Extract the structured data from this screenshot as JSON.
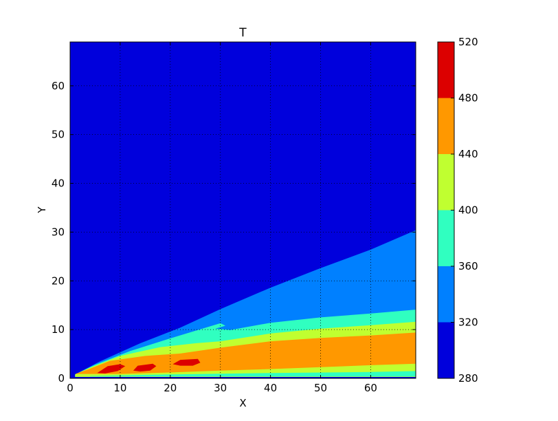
{
  "chart_data": {
    "type": "contourf",
    "title": "T",
    "xlabel": "X",
    "ylabel": "Y",
    "xlim": [
      0,
      69
    ],
    "ylim": [
      0,
      69
    ],
    "xticks": [
      0,
      10,
      20,
      30,
      40,
      50,
      60
    ],
    "yticks": [
      0,
      10,
      20,
      30,
      40,
      50,
      60
    ],
    "grid": true,
    "colorbar": {
      "levels": [
        280,
        320,
        360,
        400,
        440,
        480,
        520
      ],
      "colors": [
        "#0000dc",
        "#0080ff",
        "#30ffc0",
        "#c0ff30",
        "#ff9800",
        "#dc0000"
      ]
    },
    "regions": [
      {
        "level_index": 1,
        "points": [
          [
            1,
            0.8
          ],
          [
            6,
            3.5
          ],
          [
            14,
            7.2
          ],
          [
            22,
            10.4
          ],
          [
            30,
            14.2
          ],
          [
            40,
            18.6
          ],
          [
            50,
            22.6
          ],
          [
            60,
            26.4
          ],
          [
            69,
            30.4
          ],
          [
            69,
            0.3
          ],
          [
            1,
            0.3
          ]
        ]
      },
      {
        "level_index": 2,
        "points": [
          [
            1,
            0.8
          ],
          [
            5,
            2.8
          ],
          [
            12,
            5.6
          ],
          [
            20,
            8.2
          ],
          [
            30,
            11.3
          ],
          [
            31,
            10.8
          ],
          [
            29,
            10.2
          ],
          [
            32,
            9.9
          ],
          [
            40,
            11.4
          ],
          [
            50,
            12.5
          ],
          [
            60,
            13.3
          ],
          [
            69,
            14.1
          ],
          [
            69,
            0.3
          ],
          [
            1,
            0.3
          ]
        ]
      },
      {
        "level_index": 3,
        "points": [
          [
            1,
            0.8
          ],
          [
            4,
            2.2
          ],
          [
            10,
            4.6
          ],
          [
            18,
            6.4
          ],
          [
            25,
            7.2
          ],
          [
            30,
            7.6
          ],
          [
            40,
            9.2
          ],
          [
            50,
            10.2
          ],
          [
            60,
            10.9
          ],
          [
            69,
            11.6
          ],
          [
            69,
            0.3
          ],
          [
            1,
            0.3
          ]
        ]
      },
      {
        "level_index": 4,
        "points": [
          [
            1,
            0.9
          ],
          [
            3.5,
            1.8
          ],
          [
            8,
            3.6
          ],
          [
            15,
            4.6
          ],
          [
            22,
            5.1
          ],
          [
            30,
            6.3
          ],
          [
            40,
            7.6
          ],
          [
            50,
            8.3
          ],
          [
            60,
            8.8
          ],
          [
            69,
            9.4
          ],
          [
            69,
            3.0
          ],
          [
            60,
            2.7
          ],
          [
            50,
            2.3
          ],
          [
            40,
            1.9
          ],
          [
            30,
            1.6
          ],
          [
            20,
            1.2
          ],
          [
            10,
            0.9
          ],
          [
            4,
            0.9
          ]
        ]
      },
      {
        "level_index": 2,
        "points": [
          [
            4,
            0.5
          ],
          [
            20,
            0.8
          ],
          [
            40,
            1.1
          ],
          [
            60,
            1.3
          ],
          [
            69,
            1.5
          ],
          [
            69,
            0.4
          ],
          [
            4,
            0.4
          ]
        ]
      },
      {
        "level_index": 5,
        "points": [
          [
            5.4,
            1.1
          ],
          [
            7.5,
            2.5
          ],
          [
            10,
            2.9
          ],
          [
            11,
            2.5
          ],
          [
            9.5,
            1.5
          ],
          [
            7,
            1.0
          ]
        ]
      },
      {
        "level_index": 5,
        "points": [
          [
            12.6,
            1.6
          ],
          [
            13.5,
            2.6
          ],
          [
            16.5,
            3.0
          ],
          [
            17.2,
            2.5
          ],
          [
            16,
            1.6
          ],
          [
            14,
            1.4
          ]
        ]
      },
      {
        "level_index": 5,
        "points": [
          [
            20.5,
            2.9
          ],
          [
            22,
            3.8
          ],
          [
            25.5,
            4.0
          ],
          [
            26,
            3.2
          ],
          [
            24.5,
            2.6
          ],
          [
            22,
            2.6
          ]
        ]
      }
    ]
  }
}
